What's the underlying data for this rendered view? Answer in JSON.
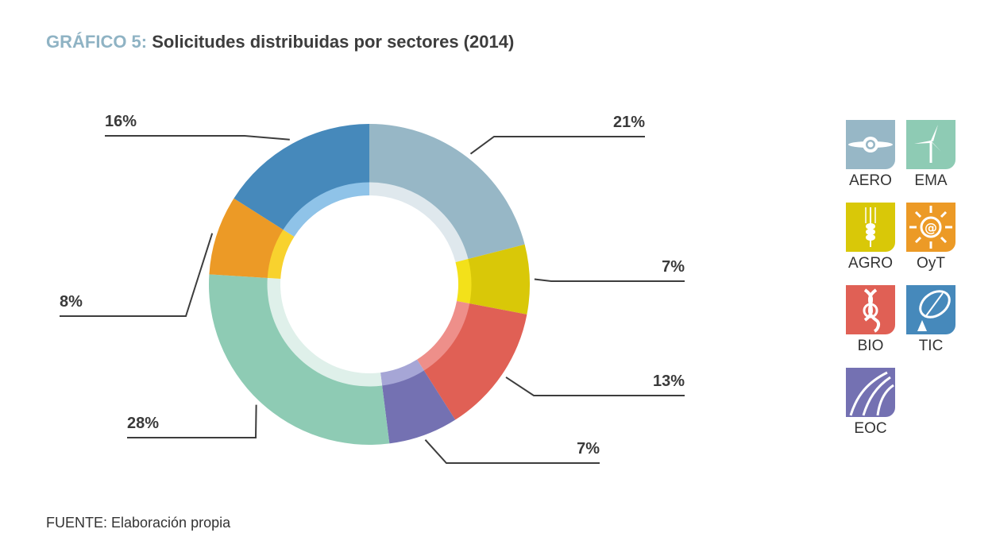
{
  "title": {
    "prefix": "GRÁFICO 5:",
    "main": "Solicitudes distribuidas por sectores (2014)"
  },
  "source": "FUENTE: Elaboración propia",
  "chart_data": {
    "type": "pie",
    "title": "GRÁFICO 5: Solicitudes distribuidas por sectores (2014)",
    "donut": true,
    "categories": [
      "AERO",
      "AGRO",
      "BIO",
      "EOC",
      "EMA",
      "OyT",
      "TIC"
    ],
    "values": [
      21,
      7,
      13,
      7,
      28,
      8,
      16
    ],
    "labels": [
      "21%",
      "7%",
      "13%",
      "7%",
      "28%",
      "8%",
      "16%"
    ],
    "colors": [
      "#97b7c6",
      "#d9c808",
      "#e06055",
      "#7471b2",
      "#8ecbb4",
      "#ec9a26",
      "#4689bb"
    ],
    "inner_colors": [
      "#dfe8ed",
      "#f3e11a",
      "#ee8f8a",
      "#a6a6d6",
      "#dff0ea",
      "#f8d22e",
      "#8fc3e8"
    ],
    "legend_position": "right"
  },
  "legend": [
    {
      "label": "AERO",
      "color": "#97b7c6",
      "icon": "propeller-icon"
    },
    {
      "label": "EMA",
      "color": "#8ecbb4",
      "icon": "wind-turbine-icon"
    },
    {
      "label": "AGRO",
      "color": "#d9c808",
      "icon": "wheat-icon"
    },
    {
      "label": "OyT",
      "color": "#ec9a26",
      "icon": "sun-at-icon"
    },
    {
      "label": "BIO",
      "color": "#e06055",
      "icon": "dna-icon"
    },
    {
      "label": "TIC",
      "color": "#4689bb",
      "icon": "satellite-dish-icon"
    },
    {
      "label": "EOC",
      "color": "#7471b2",
      "icon": "road-icon"
    }
  ]
}
